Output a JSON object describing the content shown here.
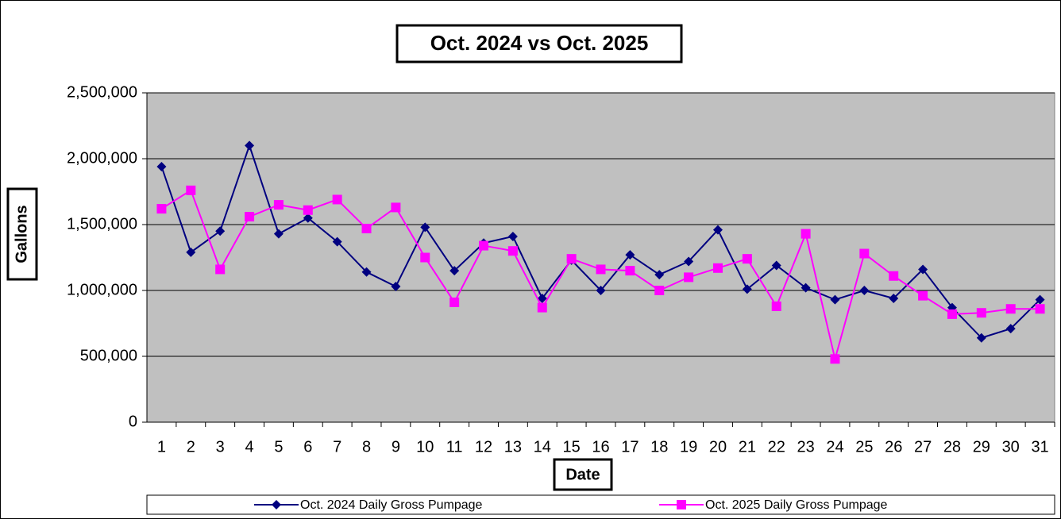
{
  "chart_data": {
    "type": "line",
    "title": "Oct. 2024 vs Oct. 2025",
    "x_label": "Date",
    "y_label": "Gallons",
    "categories": [
      "1",
      "2",
      "3",
      "4",
      "5",
      "6",
      "7",
      "8",
      "9",
      "10",
      "11",
      "12",
      "13",
      "14",
      "15",
      "16",
      "17",
      "18",
      "19",
      "20",
      "21",
      "22",
      "23",
      "24",
      "25",
      "26",
      "27",
      "28",
      "29",
      "30",
      "31"
    ],
    "series": [
      {
        "name": "Oct. 2024 Daily Gross Pumpage",
        "color": "#000080",
        "marker": "diamond",
        "values": [
          1940000,
          1290000,
          1450000,
          2100000,
          1430000,
          1550000,
          1370000,
          1140000,
          1030000,
          1480000,
          1150000,
          1360000,
          1410000,
          940000,
          1230000,
          1000000,
          1270000,
          1120000,
          1220000,
          1460000,
          1010000,
          1190000,
          1020000,
          930000,
          1000000,
          940000,
          1160000,
          870000,
          640000,
          710000,
          930000
        ]
      },
      {
        "name": "Oct. 2025 Daily Gross Pumpage",
        "color": "#ff00ff",
        "marker": "square",
        "values": [
          1620000,
          1760000,
          1160000,
          1560000,
          1650000,
          1610000,
          1690000,
          1470000,
          1630000,
          1250000,
          910000,
          1340000,
          1300000,
          870000,
          1240000,
          1160000,
          1150000,
          1000000,
          1100000,
          1170000,
          1240000,
          880000,
          1430000,
          480000,
          1280000,
          1110000,
          960000,
          820000,
          830000,
          860000,
          860000
        ]
      }
    ],
    "ylim": [
      0,
      2500000
    ],
    "yticks": [
      0,
      {
        "value": 500000,
        "label": "500,000"
      },
      {
        "value": 1000000,
        "label": "1,000,000"
      },
      {
        "value": 1500000,
        "label": "1,500,000"
      },
      {
        "value": 2000000,
        "label": "2,000,000"
      },
      {
        "value": 2500000,
        "label": "2,500,000"
      }
    ],
    "grid": true,
    "plot_background": "#c0c0c0",
    "legend": "bottom"
  }
}
